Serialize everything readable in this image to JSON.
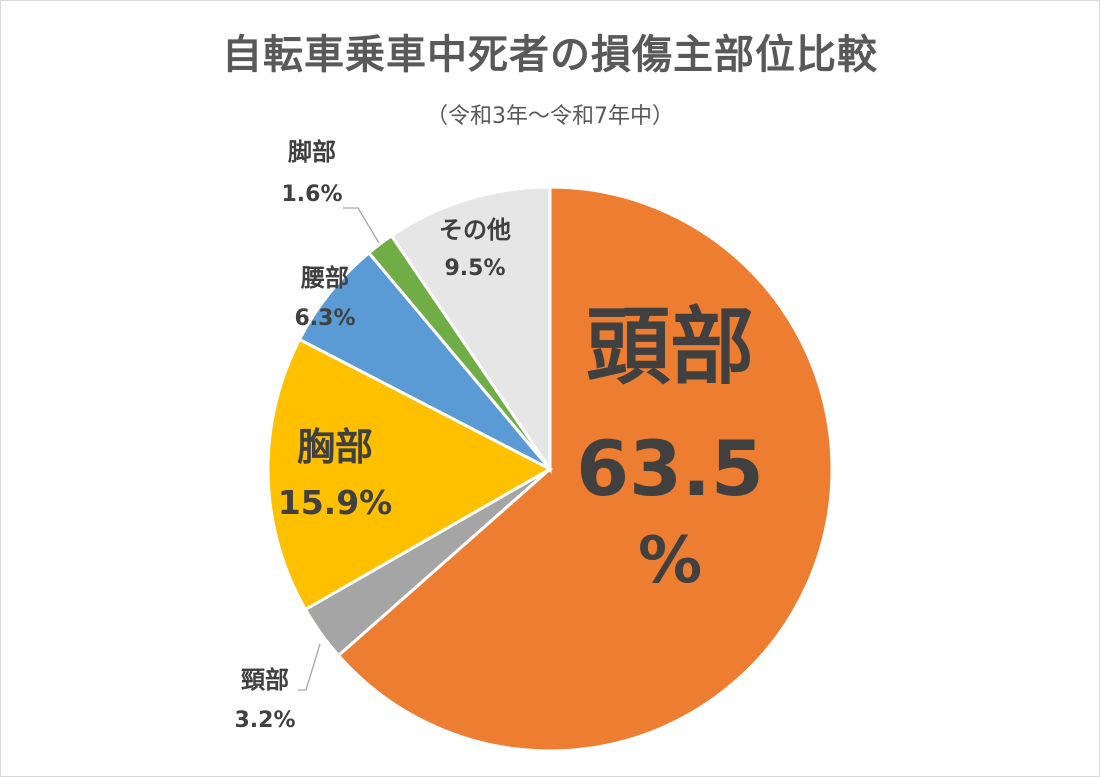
{
  "chart_data": {
    "type": "pie",
    "title": "自転車乗車中死者の損傷主部位比較",
    "subtitle": "（令和3年～令和7年中）",
    "slices": [
      {
        "name": "頭部",
        "value": 63.5,
        "label_pct": "63.5",
        "label_unit": "%",
        "color": "#ED7D31"
      },
      {
        "name": "頸部",
        "value": 3.2,
        "label_pct": "3.2%",
        "color": "#A5A5A5"
      },
      {
        "name": "胸部",
        "value": 15.9,
        "label_pct": "15.9%",
        "color": "#FFC000"
      },
      {
        "name": "腰部",
        "value": 6.3,
        "label_pct": "6.3%",
        "color": "#5B9BD5"
      },
      {
        "name": "脚部",
        "value": 1.6,
        "label_pct": "1.6%",
        "color": "#70AD47"
      },
      {
        "name": "その他",
        "value": 9.5,
        "label_pct": "9.5%",
        "color": "#E7E6E6"
      }
    ],
    "start": "12 o'clock",
    "direction": "clockwise"
  }
}
